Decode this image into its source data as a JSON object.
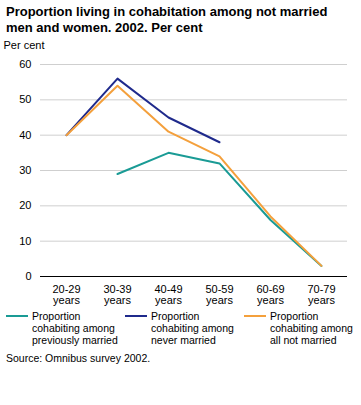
{
  "chart_data": {
    "type": "line",
    "title": "Proportion living in cohabitation among not married men and women. 2002. Per cent",
    "y_label": "Per cent",
    "source": "Source: Omnibus survey 2002.",
    "categories": [
      "20-29 years",
      "30-39 years",
      "40-49 years",
      "50-59 years",
      "60-69 years",
      "70-79 years"
    ],
    "series": [
      {
        "name": "Proportion cohabiting among previously married",
        "color": "#1a9b95",
        "values": [
          null,
          29,
          35,
          32,
          16,
          3
        ]
      },
      {
        "name": "Proportion cohabiting among never married",
        "color": "#1f2a8c",
        "values": [
          40,
          56,
          45,
          38,
          null,
          null
        ]
      },
      {
        "name": "Proportion cohabiting among all not married",
        "color": "#f4a03c",
        "values": [
          40,
          54,
          41,
          34,
          17,
          3
        ]
      }
    ],
    "ylim": [
      0,
      60
    ],
    "yticks": [
      0,
      10,
      20,
      30,
      40,
      50,
      60
    ],
    "grid": true,
    "legend": "bottom"
  }
}
